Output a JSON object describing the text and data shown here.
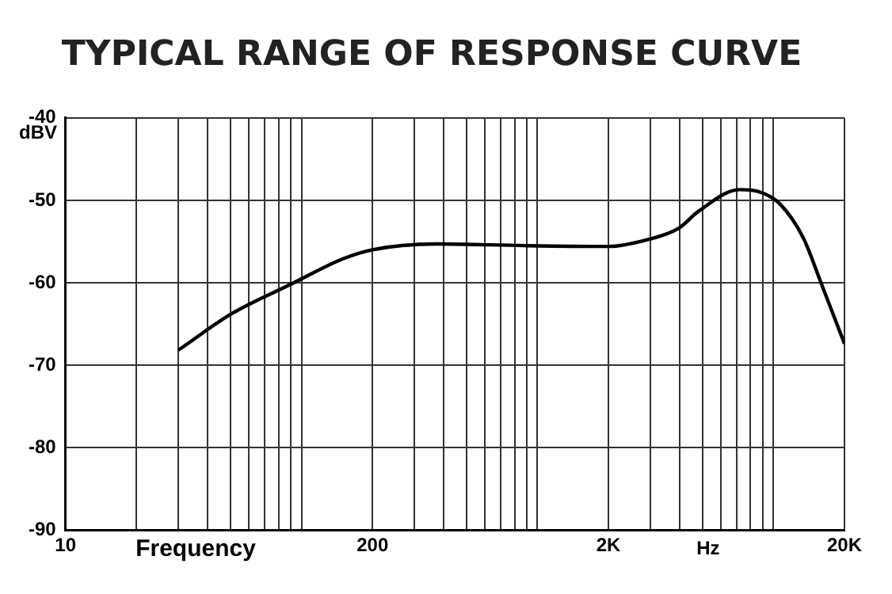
{
  "chart_data": {
    "type": "line",
    "title": "TYPICAL RANGE OF RESPONSE CURVE",
    "xlabel": "Frequency",
    "ylabel": "dBV",
    "annotations": [
      "Hz"
    ],
    "x": [
      30,
      51,
      90,
      150,
      200,
      374,
      877,
      2000,
      2900,
      3960,
      4830,
      7200,
      8530,
      10700,
      13400,
      15900,
      20000
    ],
    "series": [
      {
        "color": "#000000",
        "values": [
          -68.2,
          -63.7,
          -60.2,
          -57.1,
          -56.0,
          -55.3,
          -55.5,
          -55.6,
          -54.8,
          -53.4,
          -51.3,
          -48.7,
          -48.9,
          -50.5,
          -54.6,
          -60.0,
          -67.4
        ]
      }
    ],
    "log": "x",
    "xlim": [
      10,
      20000
    ],
    "xticks": [
      10,
      {
        "value": 20,
        "label": null
      },
      {
        "value": 30,
        "label": null
      },
      {
        "value": 40,
        "label": null
      },
      {
        "value": 50,
        "label": null
      },
      {
        "value": 60,
        "label": null
      },
      {
        "value": 70,
        "label": null
      },
      {
        "value": 80,
        "label": null
      },
      {
        "value": 90,
        "label": null
      },
      {
        "value": 100,
        "label": null
      },
      200,
      {
        "value": 300,
        "label": null
      },
      {
        "value": 400,
        "label": null
      },
      {
        "value": 500,
        "label": null
      },
      {
        "value": 600,
        "label": null
      },
      {
        "value": 700,
        "label": null
      },
      {
        "value": 800,
        "label": null
      },
      {
        "value": 900,
        "label": null
      },
      {
        "value": 1000,
        "label": null
      },
      {
        "value": 2000,
        "label": "2K"
      },
      {
        "value": 3000,
        "label": null
      },
      {
        "value": 4000,
        "label": null
      },
      {
        "value": 5000,
        "label": null
      },
      {
        "value": 6000,
        "label": null
      },
      {
        "value": 7000,
        "label": null
      },
      {
        "value": 8000,
        "label": null
      },
      {
        "value": 9000,
        "label": null
      },
      {
        "value": 10000,
        "label": null
      },
      {
        "value": 20000,
        "label": "20K"
      }
    ],
    "ylim": [
      -90,
      -40
    ],
    "yticks": [
      -90,
      -80,
      -70,
      -60,
      -50,
      -40
    ],
    "grid": true,
    "legend": false,
    "marker": "none",
    "line_style": "solid"
  }
}
